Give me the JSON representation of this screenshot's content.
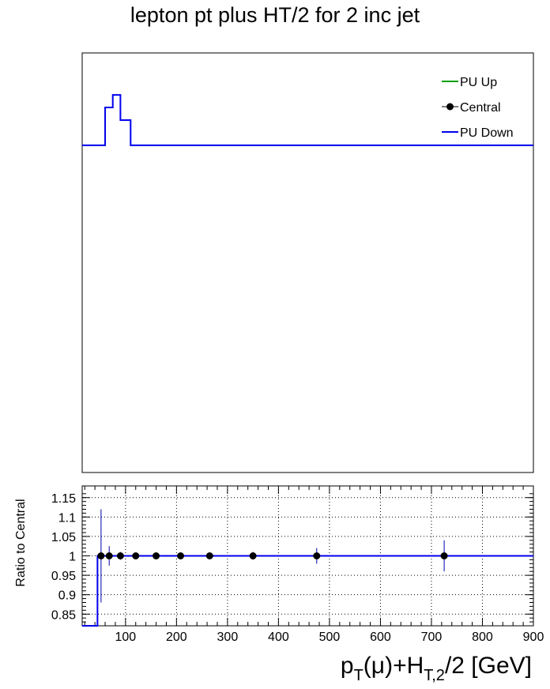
{
  "chart_data": [
    {
      "type": "line",
      "title": "lepton pt plus HT/2 for 2 inc jet",
      "xlabel": "",
      "ylabel": "",
      "legend": {
        "placement": "top-right",
        "entries": [
          {
            "name": "PU Up",
            "color": "#00a000",
            "marker": "line"
          },
          {
            "name": "Central",
            "color": "#000000",
            "marker": "point"
          },
          {
            "name": "PU Down",
            "color": "#0000ee",
            "marker": "line"
          }
        ]
      },
      "series": [
        {
          "name": "PU Down",
          "color": "#0000ee",
          "step_edges": [
            15,
            60,
            75,
            90,
            110,
            140,
            900
          ],
          "step_values": [
            0.78,
            0.87,
            0.9,
            0.84,
            0.78,
            0.78
          ]
        }
      ],
      "ylim": [
        0,
        1
      ],
      "xlim": [
        15,
        900
      ]
    },
    {
      "type": "scatter",
      "title": "",
      "xlabel": "p_T(μ)+H_T,2/2 [GeV]",
      "xlabel_parts": {
        "p": "p",
        "sub1": "T",
        "mid": "(μ)+H",
        "sub2": "T,2",
        "tail": "/2 [GeV]"
      },
      "ylabel": "Ratio to Central",
      "xlim": [
        15,
        900
      ],
      "ylim": [
        0.82,
        1.18
      ],
      "grid": true,
      "x_ticks": [
        100,
        200,
        300,
        400,
        500,
        600,
        700,
        800,
        900
      ],
      "y_ticks": [
        0.85,
        0.9,
        0.95,
        1,
        1.05,
        1.1,
        1.15
      ],
      "y_tick_labels": [
        "0.85",
        "0.9",
        "0.95",
        "1",
        "1.05",
        "1.1",
        "1.15"
      ],
      "central_points": [
        {
          "x": 52,
          "y": 1.0,
          "err": 0.12
        },
        {
          "x": 68,
          "y": 1.0,
          "err": 0.025
        },
        {
          "x": 90,
          "y": 1.0,
          "err": 0.01
        },
        {
          "x": 120,
          "y": 1.0,
          "err": 0.008
        },
        {
          "x": 160,
          "y": 1.0,
          "err": 0.008
        },
        {
          "x": 208,
          "y": 1.0,
          "err": 0.008
        },
        {
          "x": 265,
          "y": 1.0,
          "err": 0.008
        },
        {
          "x": 350,
          "y": 1.0,
          "err": 0.01
        },
        {
          "x": 475,
          "y": 1.0,
          "err": 0.02
        },
        {
          "x": 725,
          "y": 1.0,
          "err": 0.04
        }
      ],
      "ratio_line": {
        "name": "PU Down",
        "color": "#0000ee",
        "points": [
          [
            15,
            0.82
          ],
          [
            45,
            0.82
          ],
          [
            45,
            1.0
          ],
          [
            900,
            1.0
          ]
        ]
      }
    }
  ]
}
